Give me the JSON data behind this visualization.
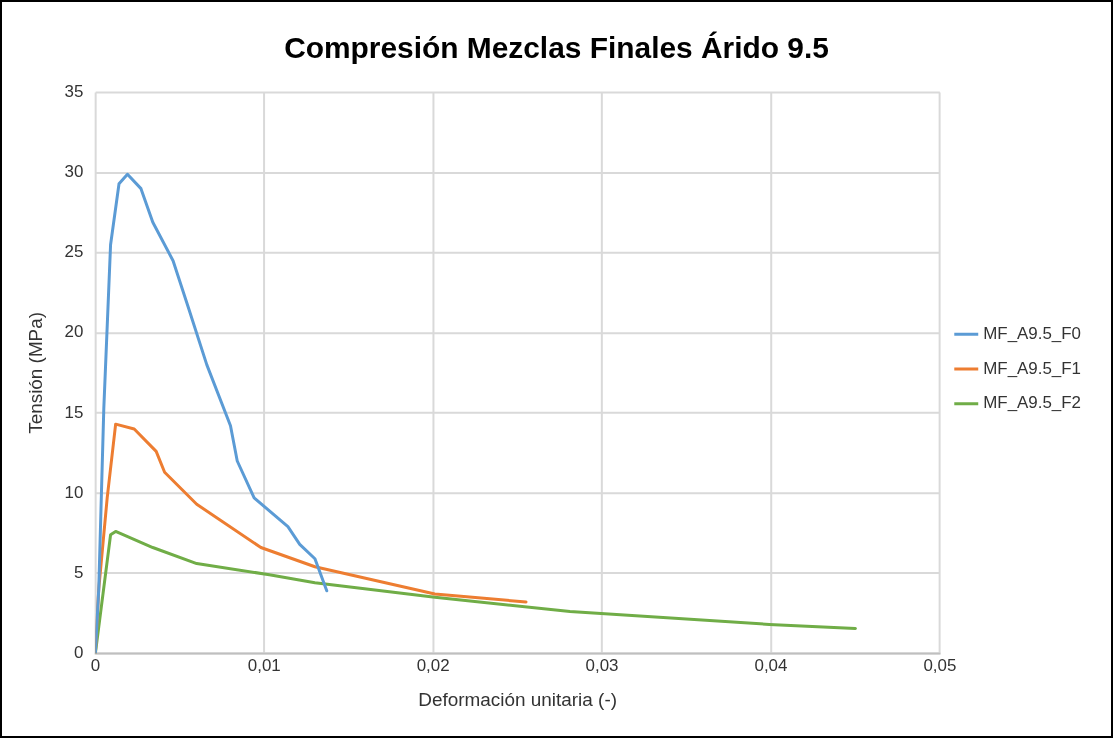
{
  "chart_data": {
    "type": "line",
    "title": "Compresión Mezclas Finales Árido 9.5",
    "xlabel": "Deformación unitaria (-)",
    "ylabel": "Tensión (MPa)",
    "xlim": [
      0,
      0.05
    ],
    "xticks": [
      0,
      {
        "value": 0.01,
        "label": "0,01"
      },
      {
        "value": 0.02,
        "label": "0,02"
      },
      {
        "value": 0.03,
        "label": "0,03"
      },
      {
        "value": 0.04,
        "label": "0,04"
      },
      {
        "value": 0.05,
        "label": "0,05"
      }
    ],
    "ylim": [
      0,
      35
    ],
    "yticks": [
      0,
      5,
      10,
      15,
      20,
      25,
      30,
      35
    ],
    "grid": true,
    "legend": "right",
    "marker": "none",
    "line_style": "solid",
    "series": [
      {
        "name": "MF_A9.5_F0",
        "color": "#5b9bd5",
        "x": [
          0,
          0.0002,
          0.0005,
          0.0009,
          0.0014,
          0.0019,
          0.0027,
          0.0034,
          0.0046,
          0.0055,
          0.0066,
          0.008,
          0.0084,
          0.0094,
          0.0114,
          0.0121,
          0.013,
          0.0137
        ],
        "values": [
          0,
          4,
          15.3,
          25.5,
          29.3,
          29.9,
          29,
          26.9,
          24.5,
          21.6,
          18,
          14.2,
          12,
          9.7,
          7.9,
          6.8,
          5.9,
          3.9
        ]
      },
      {
        "name": "MF_A9.5_F1",
        "color": "#ed7d31",
        "x": [
          0,
          0.0002,
          0.0007,
          0.0012,
          0.0023,
          0.0036,
          0.0041,
          0.006,
          0.0098,
          0.013,
          0.0201,
          0.0255
        ],
        "values": [
          0,
          4,
          9.7,
          14.3,
          14,
          12.6,
          11.3,
          9.3,
          6.6,
          5.4,
          3.7,
          3.2
        ]
      },
      {
        "name": "MF_A9.5_F2",
        "color": "#70ad47",
        "x": [
          0,
          0.0009,
          0.0012,
          0.0034,
          0.006,
          0.0103,
          0.013,
          0.0201,
          0.0281,
          0.0399,
          0.045
        ],
        "values": [
          0,
          7.4,
          7.6,
          6.6,
          5.6,
          4.9,
          4.4,
          3.5,
          2.6,
          1.8,
          1.55
        ]
      }
    ]
  }
}
